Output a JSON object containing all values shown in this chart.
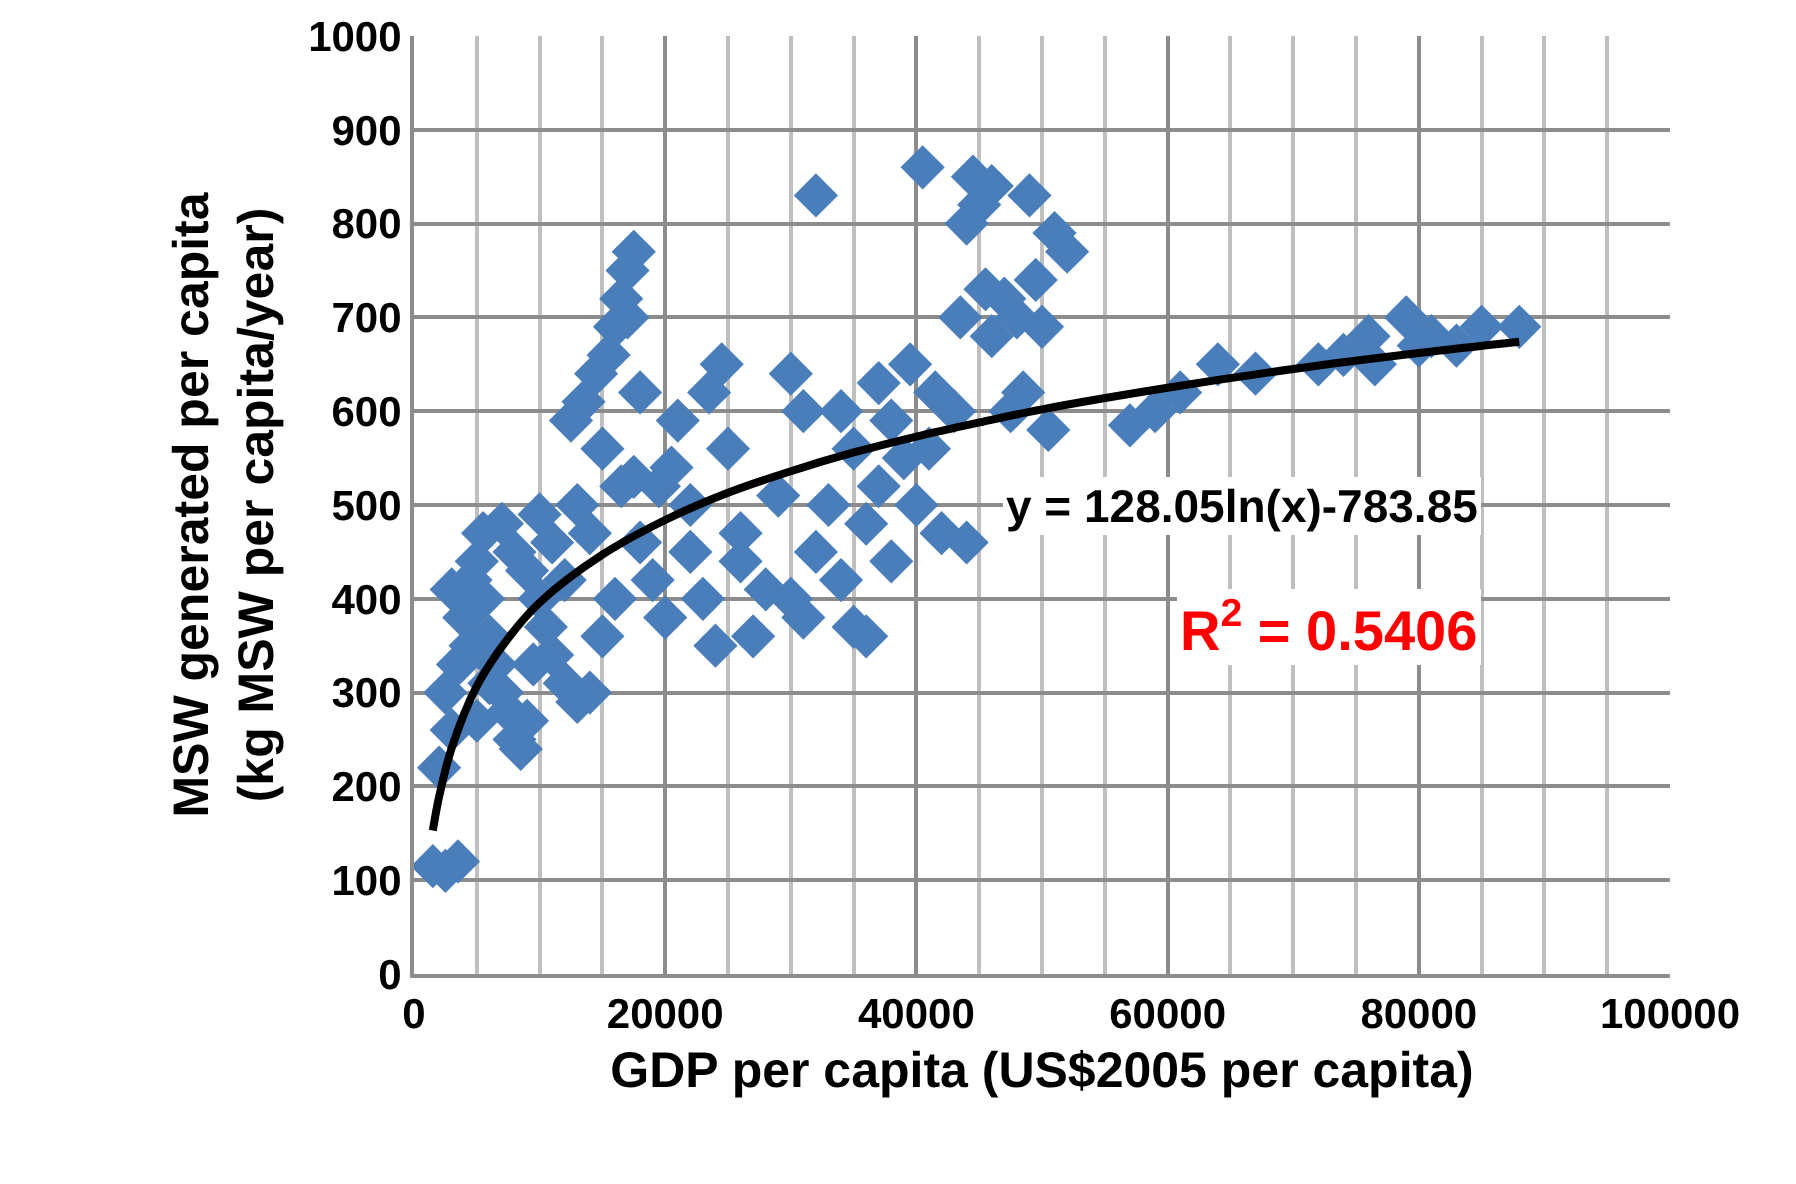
{
  "chart_data": {
    "type": "scatter",
    "xlabel": "GDP per capita (US$2005 per capita)",
    "ylabel": "MSW generated per capita\n(kg MSW per capita/year)",
    "xlim": [
      0,
      100000
    ],
    "xticks": [
      0,
      20000,
      40000,
      60000,
      80000,
      100000
    ],
    "ylim": [
      0,
      1000
    ],
    "yticks": [
      0,
      100,
      200,
      300,
      400,
      500,
      600,
      700,
      800,
      900,
      1000
    ],
    "grid": true,
    "annotations": [
      "y = 128.05ln(x)-783.85",
      "R$^{2}$ = 0.5406"
    ],
    "series": [
      {
        "color": "#4a7ebb",
        "marker": "diamond",
        "x": [
          1500,
          2500,
          3500,
          2000,
          3000,
          2500,
          3500,
          4000,
          4500,
          3000,
          5000,
          5500,
          6000,
          6500,
          7000,
          7500,
          8000,
          8500,
          9000,
          5500,
          7000,
          8000,
          9000,
          10000,
          10500,
          11000,
          12000,
          13000,
          14000,
          12000,
          11000,
          10000,
          6000,
          4500,
          5000,
          9500,
          15000,
          16000,
          14000,
          13000,
          12500,
          13500,
          14500,
          15000,
          15500,
          16000,
          16500,
          17000,
          17500,
          17000,
          18000,
          17500,
          16500,
          18000,
          19000,
          20000,
          19500,
          21000,
          22000,
          23000,
          23500,
          24500,
          25000,
          26000,
          27000,
          28000,
          26000,
          24000,
          22000,
          20500,
          29000,
          30000,
          31000,
          30000,
          31000,
          32000,
          32000,
          33000,
          34000,
          35000,
          34000,
          35000,
          36000,
          36000,
          37000,
          37000,
          38000,
          38000,
          39000,
          39500,
          40000,
          40500,
          41000,
          41500,
          42000,
          43000,
          43500,
          44000,
          44500,
          45000,
          46000,
          45500,
          46000,
          47000,
          47500,
          48000,
          48500,
          49000,
          49500,
          50000,
          51000,
          52000,
          50500,
          44000,
          57000,
          59000,
          61000,
          64000,
          67000,
          72000,
          74000,
          76000,
          76500,
          79000,
          80000,
          81000,
          83000,
          85000,
          88000
        ],
        "values": [
          115,
          110,
          120,
          220,
          260,
          300,
          330,
          380,
          420,
          410,
          440,
          400,
          360,
          330,
          300,
          280,
          250,
          240,
          270,
          470,
          480,
          450,
          430,
          400,
          370,
          340,
          310,
          290,
          300,
          420,
          460,
          490,
          310,
          350,
          270,
          330,
          360,
          400,
          470,
          500,
          590,
          610,
          640,
          560,
          660,
          690,
          720,
          750,
          770,
          700,
          620,
          530,
          520,
          460,
          420,
          380,
          520,
          590,
          450,
          400,
          620,
          650,
          560,
          470,
          360,
          410,
          440,
          350,
          500,
          540,
          510,
          640,
          600,
          400,
          380,
          830,
          450,
          500,
          420,
          560,
          600,
          370,
          360,
          480,
          520,
          630,
          590,
          440,
          550,
          650,
          500,
          860,
          560,
          620,
          470,
          600,
          700,
          800,
          850,
          820,
          840,
          730,
          680,
          720,
          600,
          700,
          620,
          830,
          740,
          690,
          790,
          770,
          580,
          460,
          585,
          600,
          620,
          650,
          640,
          650,
          660,
          680,
          650,
          700,
          670,
          680,
          670,
          690,
          690
        ]
      },
      {
        "type": "line",
        "color": "#000000",
        "marker": "none",
        "x": [
          1500,
          2000,
          3000,
          5000,
          7500,
          10000,
          15000,
          20000,
          25000,
          30000,
          35000,
          40000,
          45000,
          50000,
          60000,
          70000,
          80000,
          88000
        ],
        "values": [
          153,
          189,
          241,
          307,
          358,
          396,
          447,
          484,
          513,
          536,
          556,
          573,
          588,
          602,
          625,
          645,
          662,
          674
        ]
      }
    ]
  }
}
